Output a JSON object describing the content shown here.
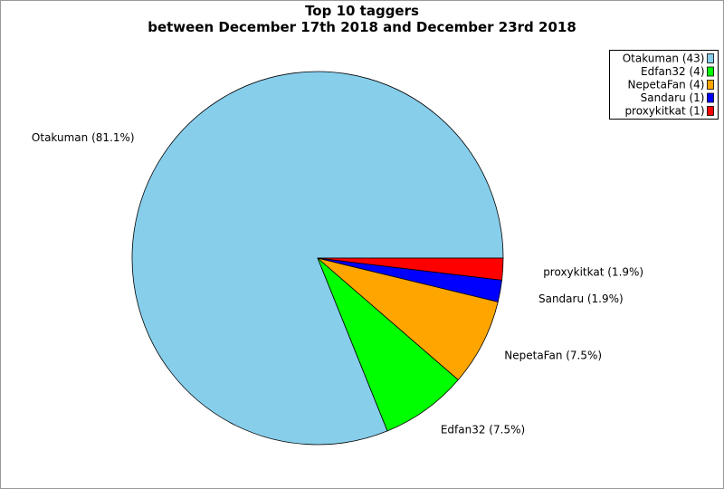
{
  "chart_data": {
    "type": "pie",
    "title": "Top 10 taggers",
    "subtitle": "between December 17th 2018 and December 23rd 2018",
    "legend_position": "top-right",
    "slices": [
      {
        "name": "Otakuman",
        "value": 43,
        "percent_label": "Otakuman (81.1%)",
        "legend_label": "Otakuman (43)",
        "color": "#87ceeb"
      },
      {
        "name": "Edfan32",
        "value": 4,
        "percent_label": "Edfan32 (7.5%)",
        "legend_label": "Edfan32 (4)",
        "color": "#00ff00"
      },
      {
        "name": "NepetaFan",
        "value": 4,
        "percent_label": "NepetaFan (7.5%)",
        "legend_label": "NepetaFan (4)",
        "color": "#ffa500"
      },
      {
        "name": "Sandaru",
        "value": 1,
        "percent_label": "Sandaru (1.9%)",
        "legend_label": "Sandaru (1)",
        "color": "#0000ff"
      },
      {
        "name": "proxykitkat",
        "value": 1,
        "percent_label": "proxykitkat (1.9%)",
        "legend_label": "proxykitkat (1)",
        "color": "#ff0000"
      }
    ]
  }
}
